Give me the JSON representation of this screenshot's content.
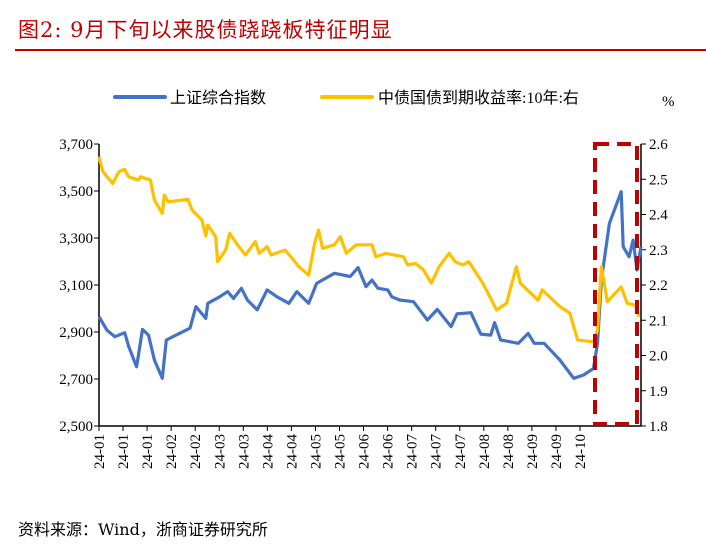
{
  "title": "图2:  9月下旬以来股债跷跷板特征明显",
  "source": "资料来源：Wind，浙商证券研究所",
  "chart_data": {
    "type": "line",
    "title": "",
    "right_axis_unit": "%",
    "xlim": [
      "2024-01-02",
      "2024-10-02"
    ],
    "x_tick_labels": [
      "24-01",
      "24-01",
      "24-01",
      "24-02",
      "24-02",
      "24-03",
      "24-03",
      "24-04",
      "24-04",
      "24-05",
      "24-05",
      "24-06",
      "24-06",
      "24-07",
      "24-07",
      "24-07",
      "24-08",
      "24-08",
      "24-09",
      "24-09",
      "24-10"
    ],
    "y_left": {
      "lim": [
        2500,
        3700
      ],
      "ticks": [
        "3,700",
        "3,500",
        "3,300",
        "3,100",
        "2,900",
        "2,700",
        "2,500"
      ]
    },
    "y_right": {
      "lim": [
        1.8,
        2.6
      ],
      "ticks": [
        "2.6",
        "2.5",
        "2.4",
        "2.3",
        "2.2",
        "2.1",
        "2.0",
        "1.9",
        "1.8"
      ]
    },
    "grid": false,
    "legend_position": "top",
    "highlight_box": {
      "from": "2024-09-10",
      "to": "2024-10-02",
      "color": "#c00000",
      "style": "dashed"
    },
    "series": [
      {
        "name": "上证综合指数",
        "axis": "left",
        "color": "#4472c4",
        "points": [
          [
            "2024-01-02",
            2965
          ],
          [
            "2024-01-06",
            2908
          ],
          [
            "2024-01-10",
            2880
          ],
          [
            "2024-01-15",
            2897
          ],
          [
            "2024-01-17",
            2838
          ],
          [
            "2024-01-21",
            2752
          ],
          [
            "2024-01-24",
            2911
          ],
          [
            "2024-01-27",
            2887
          ],
          [
            "2024-01-30",
            2781
          ],
          [
            "2024-02-03",
            2703
          ],
          [
            "2024-02-05",
            2866
          ],
          [
            "2024-02-10",
            2887
          ],
          [
            "2024-02-17",
            2916
          ],
          [
            "2024-02-20",
            3008
          ],
          [
            "2024-02-25",
            2958
          ],
          [
            "2024-02-26",
            3022
          ],
          [
            "2024-03-03",
            3050
          ],
          [
            "2024-03-07",
            3072
          ],
          [
            "2024-03-10",
            3043
          ],
          [
            "2024-03-14",
            3086
          ],
          [
            "2024-03-17",
            3036
          ],
          [
            "2024-03-22",
            2994
          ],
          [
            "2024-03-27",
            3079
          ],
          [
            "2024-04-01",
            3050
          ],
          [
            "2024-04-07",
            3022
          ],
          [
            "2024-04-11",
            3072
          ],
          [
            "2024-04-17",
            3022
          ],
          [
            "2024-04-21",
            3107
          ],
          [
            "2024-04-30",
            3150
          ],
          [
            "2024-05-08",
            3136
          ],
          [
            "2024-05-12",
            3174
          ],
          [
            "2024-05-16",
            3093
          ],
          [
            "2024-05-19",
            3121
          ],
          [
            "2024-05-22",
            3086
          ],
          [
            "2024-05-27",
            3079
          ],
          [
            "2024-05-29",
            3050
          ],
          [
            "2024-06-02",
            3036
          ],
          [
            "2024-06-09",
            3029
          ],
          [
            "2024-06-16",
            2951
          ],
          [
            "2024-06-21",
            2996
          ],
          [
            "2024-06-28",
            2923
          ],
          [
            "2024-07-01",
            2977
          ],
          [
            "2024-07-08",
            2982
          ],
          [
            "2024-07-13",
            2891
          ],
          [
            "2024-07-18",
            2887
          ],
          [
            "2024-07-20",
            2940
          ],
          [
            "2024-07-23",
            2866
          ],
          [
            "2024-08-01",
            2852
          ],
          [
            "2024-08-06",
            2894
          ],
          [
            "2024-08-09",
            2852
          ],
          [
            "2024-08-14",
            2852
          ],
          [
            "2024-08-22",
            2781
          ],
          [
            "2024-08-29",
            2703
          ],
          [
            "2024-09-03",
            2717
          ],
          [
            "2024-09-08",
            2745
          ],
          [
            "2024-09-10",
            2852
          ],
          [
            "2024-09-12",
            3121
          ],
          [
            "2024-09-16",
            3362
          ],
          [
            "2024-09-22",
            3497
          ],
          [
            "2024-09-23",
            3263
          ],
          [
            "2024-09-26",
            3220
          ],
          [
            "2024-09-28",
            3291
          ],
          [
            "2024-09-30",
            3164
          ],
          [
            "2024-10-02",
            3263
          ]
        ]
      },
      {
        "name": "中债国债到期收益率:10年:右",
        "axis": "right",
        "color": "#ffc000",
        "points": [
          [
            "2024-01-02",
            2.564
          ],
          [
            "2024-01-04",
            2.521
          ],
          [
            "2024-01-09",
            2.488
          ],
          [
            "2024-01-12",
            2.521
          ],
          [
            "2024-01-15",
            2.528
          ],
          [
            "2024-01-17",
            2.507
          ],
          [
            "2024-01-22",
            2.498
          ],
          [
            "2024-01-23",
            2.507
          ],
          [
            "2024-01-28",
            2.498
          ],
          [
            "2024-01-30",
            2.441
          ],
          [
            "2024-02-03",
            2.403
          ],
          [
            "2024-02-04",
            2.455
          ],
          [
            "2024-02-06",
            2.436
          ],
          [
            "2024-02-16",
            2.443
          ],
          [
            "2024-02-18",
            2.413
          ],
          [
            "2024-02-23",
            2.384
          ],
          [
            "2024-02-25",
            2.339
          ],
          [
            "2024-02-26",
            2.37
          ],
          [
            "2024-03-01",
            2.337
          ],
          [
            "2024-03-02",
            2.266
          ],
          [
            "2024-03-06",
            2.299
          ],
          [
            "2024-03-08",
            2.347
          ],
          [
            "2024-03-12",
            2.314
          ],
          [
            "2024-03-16",
            2.285
          ],
          [
            "2024-03-21",
            2.323
          ],
          [
            "2024-03-23",
            2.29
          ],
          [
            "2024-03-27",
            2.309
          ],
          [
            "2024-03-29",
            2.285
          ],
          [
            "2024-04-05",
            2.299
          ],
          [
            "2024-04-08",
            2.28
          ],
          [
            "2024-04-12",
            2.252
          ],
          [
            "2024-04-17",
            2.228
          ],
          [
            "2024-04-20",
            2.318
          ],
          [
            "2024-04-22",
            2.356
          ],
          [
            "2024-04-24",
            2.304
          ],
          [
            "2024-04-30",
            2.314
          ],
          [
            "2024-05-03",
            2.337
          ],
          [
            "2024-05-06",
            2.29
          ],
          [
            "2024-05-11",
            2.314
          ],
          [
            "2024-05-19",
            2.314
          ],
          [
            "2024-05-21",
            2.28
          ],
          [
            "2024-05-26",
            2.29
          ],
          [
            "2024-06-04",
            2.28
          ],
          [
            "2024-06-06",
            2.257
          ],
          [
            "2024-06-10",
            2.261
          ],
          [
            "2024-06-14",
            2.243
          ],
          [
            "2024-06-18",
            2.205
          ],
          [
            "2024-06-22",
            2.252
          ],
          [
            "2024-06-27",
            2.29
          ],
          [
            "2024-06-30",
            2.266
          ],
          [
            "2024-07-04",
            2.257
          ],
          [
            "2024-07-07",
            2.266
          ],
          [
            "2024-07-14",
            2.205
          ],
          [
            "2024-07-21",
            2.129
          ],
          [
            "2024-07-26",
            2.148
          ],
          [
            "2024-07-31",
            2.252
          ],
          [
            "2024-08-02",
            2.205
          ],
          [
            "2024-08-11",
            2.157
          ],
          [
            "2024-08-13",
            2.186
          ],
          [
            "2024-08-22",
            2.139
          ],
          [
            "2024-08-27",
            2.12
          ],
          [
            "2024-08-31",
            2.044
          ],
          [
            "2024-09-08",
            2.039
          ],
          [
            "2024-09-10",
            2.072
          ],
          [
            "2024-09-12",
            2.252
          ],
          [
            "2024-09-15",
            2.153
          ],
          [
            "2024-09-22",
            2.195
          ],
          [
            "2024-09-25",
            2.148
          ],
          [
            "2024-09-29",
            2.143
          ],
          [
            "2024-10-01",
            2.11
          ]
        ]
      }
    ]
  }
}
